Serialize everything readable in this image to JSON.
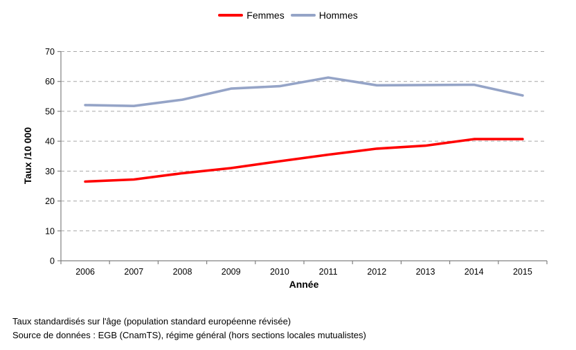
{
  "chart_data": {
    "type": "line",
    "categories": [
      "2006",
      "2007",
      "2008",
      "2009",
      "2010",
      "2011",
      "2012",
      "2013",
      "2014",
      "2015"
    ],
    "series": [
      {
        "name": "Femmes",
        "color": "#FF0000",
        "values": [
          26.5,
          27.2,
          29.3,
          31.0,
          33.3,
          35.5,
          37.5,
          38.5,
          40.7,
          40.7
        ]
      },
      {
        "name": "Hommes",
        "color": "#95A4C7",
        "values": [
          52.1,
          51.8,
          53.9,
          57.6,
          58.4,
          61.3,
          58.7,
          58.8,
          58.9,
          55.3
        ]
      }
    ],
    "title": "",
    "xlabel": "Année",
    "ylabel": "Taux /10 000",
    "ylim": [
      0,
      70
    ],
    "ytick_step": 10,
    "yticks": [
      "0",
      "10",
      "20",
      "30",
      "40",
      "50",
      "60",
      "70"
    ],
    "grid": "horizontal-dashed",
    "gridline_color": "#A6A6A6",
    "axis_color": "#808080",
    "tick_label_color": "#000000",
    "legend_position": "top-center"
  },
  "footnotes": {
    "line1": "Taux standardisés sur l'âge (population standard européenne révisée)",
    "line2": "Source de données : EGB (CnamTS), régime général (hors sections locales mutualistes)"
  }
}
